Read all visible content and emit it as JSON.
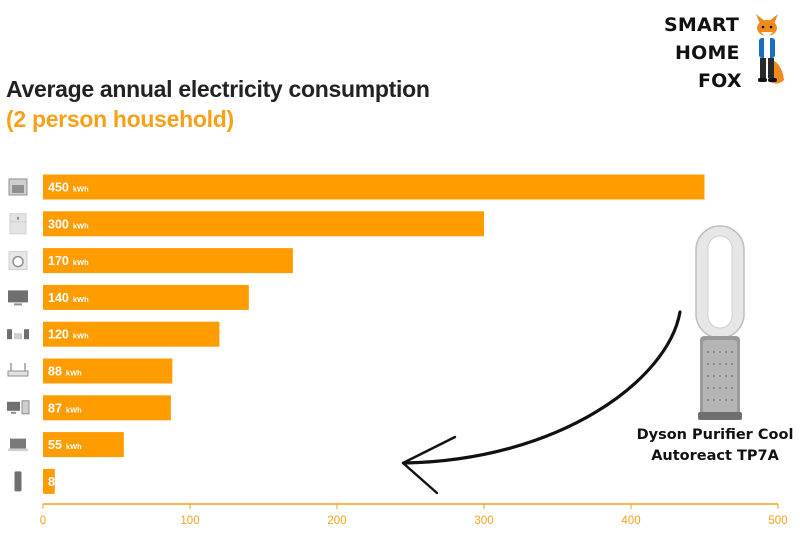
{
  "header": {
    "title": "Average annual electricity consumption",
    "subtitle": "(2 person household)"
  },
  "logo": {
    "line1": "SMART",
    "line2": "HOME",
    "line3": "FOX"
  },
  "product": {
    "line1": "Dyson Purifier Cool",
    "line2": "Autoreact TP7A"
  },
  "colors": {
    "bar": "#ff9d00",
    "title": "#222222",
    "subtitle": "#f7a11a",
    "axis": "#f7a11a"
  },
  "chart_data": {
    "type": "bar",
    "orientation": "horizontal",
    "title": "Average annual electricity consumption",
    "subtitle": "(2 person household)",
    "categories": [
      "stove-icon",
      "fridge-icon",
      "washing-machine-icon",
      "tv-icon",
      "stereo-icon",
      "router-icon",
      "desktop-computer-icon",
      "laptop-icon",
      "air-purifier-icon"
    ],
    "values": [
      450,
      300,
      170,
      140,
      120,
      88,
      87,
      55,
      8
    ],
    "value_labels": [
      "450",
      "300",
      "170",
      "140",
      "120",
      "88",
      "87",
      "55",
      "8"
    ],
    "unit": "kWh",
    "xlim": [
      0,
      500
    ],
    "xticks": [
      "0",
      "100",
      "200",
      "300",
      "400",
      "500"
    ],
    "grid": false,
    "legend": "none"
  }
}
